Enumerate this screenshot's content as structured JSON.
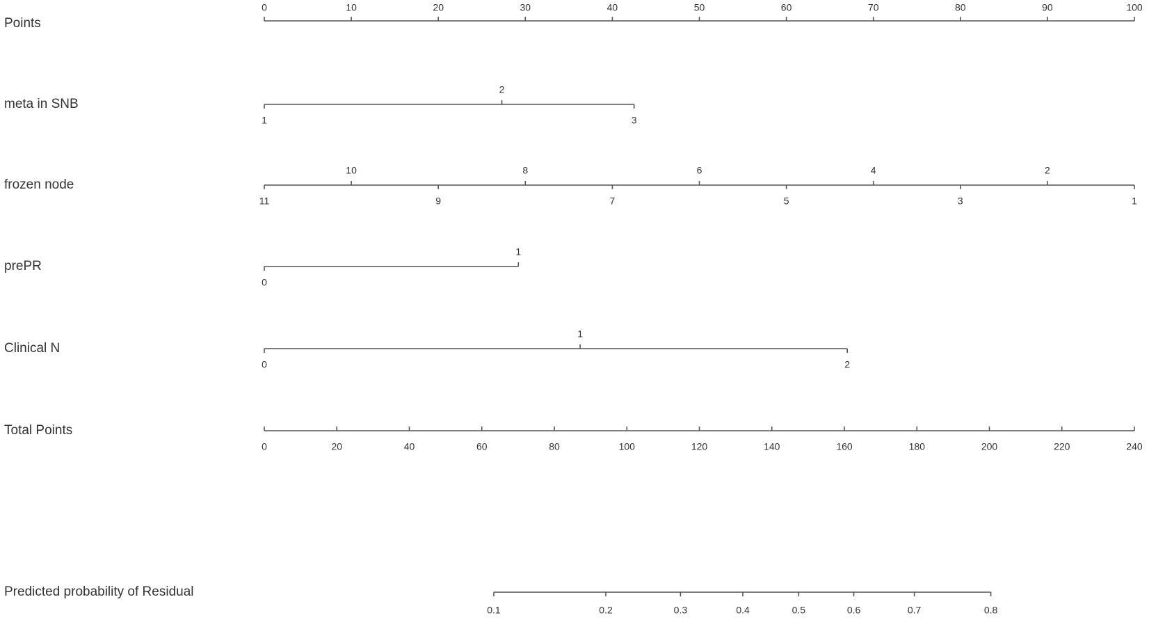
{
  "chart_data": {
    "type": "nomogram",
    "points_axis": {
      "label": "Points",
      "xlim": [
        0,
        100
      ],
      "xticks": [
        0,
        10,
        20,
        30,
        40,
        50,
        60,
        70,
        80,
        90,
        100
      ]
    },
    "variables": [
      {
        "label": "meta in SNB",
        "levels": [
          1,
          2,
          3
        ],
        "points": [
          0,
          27.3,
          42.5
        ]
      },
      {
        "label": "frozen node",
        "levels": [
          11,
          10,
          9,
          8,
          7,
          6,
          5,
          4,
          3,
          2,
          1
        ],
        "points": [
          0,
          10,
          20,
          30,
          40,
          50,
          60,
          70,
          80,
          90,
          100
        ]
      },
      {
        "label": "prePR",
        "levels": [
          0,
          1
        ],
        "points": [
          0,
          29.2
        ]
      },
      {
        "label": "Clinical N",
        "levels": [
          0,
          1,
          2
        ],
        "points": [
          0,
          36.3,
          67
        ]
      }
    ],
    "total_axis": {
      "label": "Total Points",
      "xlim": [
        0,
        240
      ],
      "xticks": [
        0,
        20,
        40,
        60,
        80,
        100,
        120,
        140,
        160,
        180,
        200,
        220,
        240
      ]
    },
    "prediction": {
      "label": "Predicted probability of Residual",
      "values": [
        0.1,
        0.2,
        0.3,
        0.4,
        0.5,
        0.6,
        0.7,
        0.8
      ],
      "total_points": [
        63.3,
        94.2,
        114.8,
        132.0,
        147.4,
        162.6,
        179.3,
        200.4
      ]
    }
  }
}
